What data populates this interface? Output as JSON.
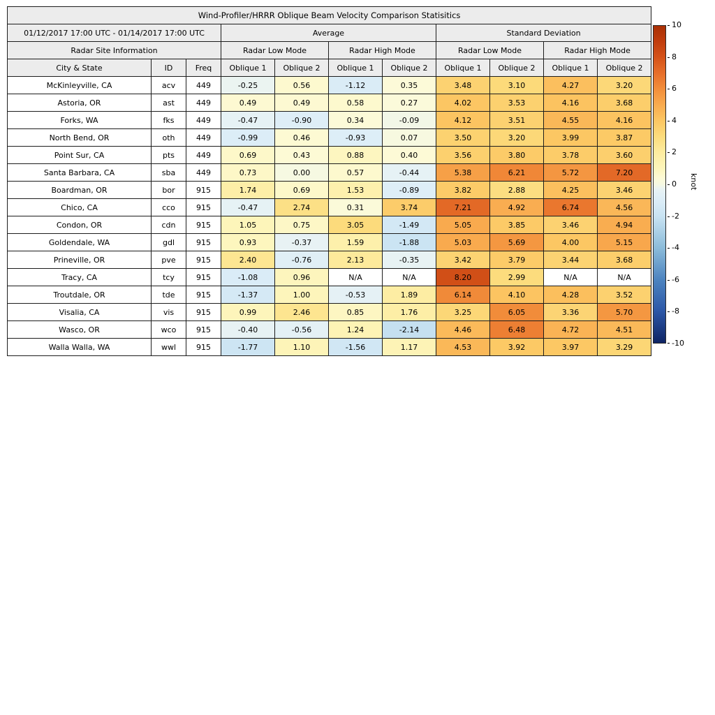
{
  "title": "Wind-Profiler/HRRR Oblique Beam Velocity Comparison Statisitics",
  "period": "01/12/2017 17:00 UTC - 01/14/2017 17:00 UTC",
  "group_headers": {
    "average": "Average",
    "standard_deviation": "Standard Deviation",
    "site_info": "Radar Site Information",
    "modes": [
      "Radar Low Mode",
      "Radar High Mode",
      "Radar Low Mode",
      "Radar High Mode"
    ]
  },
  "columns": [
    "City & State",
    "ID",
    "Freq",
    "Oblique 1",
    "Oblique 2",
    "Oblique 1",
    "Oblique 2",
    "Oblique 1",
    "Oblique 2",
    "Oblique 1",
    "Oblique 2"
  ],
  "colorbar": {
    "label": "knot",
    "vmin": -10,
    "vmax": 10,
    "ticks": [
      10,
      8,
      6,
      4,
      2,
      0,
      -2,
      -4,
      -6,
      -8,
      -10
    ],
    "stops": [
      [
        -10,
        "#0e2464"
      ],
      [
        -8,
        "#2c57a7"
      ],
      [
        -6,
        "#4d84c0"
      ],
      [
        -4,
        "#8cbcda"
      ],
      [
        -2,
        "#c9e3f2"
      ],
      [
        -1,
        "#dcedf7"
      ],
      [
        -0.3,
        "#e9f3f4"
      ],
      [
        0,
        "#f6f9e2"
      ],
      [
        0.4,
        "#fdfad6"
      ],
      [
        1,
        "#fdf5bb"
      ],
      [
        2,
        "#fdeca0"
      ],
      [
        3,
        "#fcdc7d"
      ],
      [
        4,
        "#fcc763"
      ],
      [
        5,
        "#f9ab4f"
      ],
      [
        6,
        "#f28e3b"
      ],
      [
        7,
        "#e76f2a"
      ],
      [
        8,
        "#d55319"
      ],
      [
        9,
        "#c13d0d"
      ],
      [
        10,
        "#a93005"
      ]
    ],
    "na_color": "#ffffff"
  },
  "chart_data": {
    "type": "heatmap",
    "title": "Wind-Profiler/HRRR Oblique Beam Velocity Comparison Statisitics",
    "value_unit": "knot",
    "value_range": [
      -10,
      10
    ],
    "value_columns": [
      "Average / Radar Low Mode / Oblique 1",
      "Average / Radar Low Mode / Oblique 2",
      "Average / Radar High Mode / Oblique 1",
      "Average / Radar High Mode / Oblique 2",
      "Standard Deviation / Radar Low Mode / Oblique 1",
      "Standard Deviation / Radar Low Mode / Oblique 2",
      "Standard Deviation / Radar High Mode / Oblique 1",
      "Standard Deviation / Radar High Mode / Oblique 2"
    ],
    "rows": [
      {
        "city": "McKinleyville, CA",
        "id": "acv",
        "freq": "449",
        "values": [
          "-0.25",
          "0.56",
          "-1.12",
          "0.35",
          "3.48",
          "3.10",
          "4.27",
          "3.20"
        ]
      },
      {
        "city": "Astoria, OR",
        "id": "ast",
        "freq": "449",
        "values": [
          "0.49",
          "0.49",
          "0.58",
          "0.27",
          "4.02",
          "3.53",
          "4.16",
          "3.68"
        ]
      },
      {
        "city": "Forks, WA",
        "id": "fks",
        "freq": "449",
        "values": [
          "-0.47",
          "-0.90",
          "0.34",
          "-0.09",
          "4.12",
          "3.51",
          "4.55",
          "4.16"
        ]
      },
      {
        "city": "North Bend, OR",
        "id": "oth",
        "freq": "449",
        "values": [
          "-0.99",
          "0.46",
          "-0.93",
          "0.07",
          "3.50",
          "3.20",
          "3.99",
          "3.87"
        ]
      },
      {
        "city": "Point Sur, CA",
        "id": "pts",
        "freq": "449",
        "values": [
          "0.69",
          "0.43",
          "0.88",
          "0.40",
          "3.56",
          "3.80",
          "3.78",
          "3.60"
        ]
      },
      {
        "city": "Santa Barbara, CA",
        "id": "sba",
        "freq": "449",
        "values": [
          "0.73",
          "0.00",
          "0.57",
          "-0.44",
          "5.38",
          "6.21",
          "5.72",
          "7.20"
        ]
      },
      {
        "city": "Boardman, OR",
        "id": "bor",
        "freq": "915",
        "values": [
          "1.74",
          "0.69",
          "1.53",
          "-0.89",
          "3.82",
          "2.88",
          "4.25",
          "3.46"
        ]
      },
      {
        "city": "Chico, CA",
        "id": "cco",
        "freq": "915",
        "values": [
          "-0.47",
          "2.74",
          "0.31",
          "3.74",
          "7.21",
          "4.92",
          "6.74",
          "4.56"
        ]
      },
      {
        "city": "Condon, OR",
        "id": "cdn",
        "freq": "915",
        "values": [
          "1.05",
          "0.75",
          "3.05",
          "-1.49",
          "5.05",
          "3.85",
          "3.46",
          "4.94"
        ]
      },
      {
        "city": "Goldendale, WA",
        "id": "gdl",
        "freq": "915",
        "values": [
          "0.93",
          "-0.37",
          "1.59",
          "-1.88",
          "5.03",
          "5.69",
          "4.00",
          "5.15"
        ]
      },
      {
        "city": "Prineville, OR",
        "id": "pve",
        "freq": "915",
        "values": [
          "2.40",
          "-0.76",
          "2.13",
          "-0.35",
          "3.42",
          "3.79",
          "3.44",
          "3.68"
        ]
      },
      {
        "city": "Tracy, CA",
        "id": "tcy",
        "freq": "915",
        "values": [
          "-1.08",
          "0.96",
          "N/A",
          "N/A",
          "8.20",
          "2.99",
          "N/A",
          "N/A"
        ]
      },
      {
        "city": "Troutdale, OR",
        "id": "tde",
        "freq": "915",
        "values": [
          "-1.37",
          "1.00",
          "-0.53",
          "1.89",
          "6.14",
          "4.10",
          "4.28",
          "3.52"
        ]
      },
      {
        "city": "Visalia, CA",
        "id": "vis",
        "freq": "915",
        "values": [
          "0.99",
          "2.46",
          "0.85",
          "1.76",
          "3.25",
          "6.05",
          "3.36",
          "5.70"
        ]
      },
      {
        "city": "Wasco, OR",
        "id": "wco",
        "freq": "915",
        "values": [
          "-0.40",
          "-0.56",
          "1.24",
          "-2.14",
          "4.46",
          "6.48",
          "4.72",
          "4.51"
        ]
      },
      {
        "city": "Walla Walla, WA",
        "id": "wwl",
        "freq": "915",
        "values": [
          "-1.77",
          "1.10",
          "-1.56",
          "1.17",
          "4.53",
          "3.92",
          "3.97",
          "3.29"
        ]
      }
    ]
  }
}
